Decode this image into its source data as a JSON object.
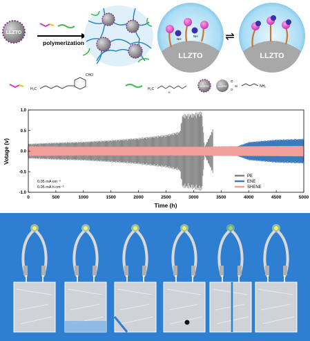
{
  "scheme": {
    "filler_label": "LLZTO",
    "arrow_label": "polymerization",
    "shell_label_left": "LLZTO",
    "shell_label_right": "LLZTO",
    "equilibrium_symbol": "⇌",
    "nh2_label": "NH",
    "nh2_sub": "2",
    "legend_monomer_substituent": "CHO",
    "legend_monomer_left": "H₂C",
    "legend_peg_left": "H₃C",
    "legend_peg_sub": "n",
    "legend_filler_label": "LLZTO",
    "legend_grafted_label": "LLZTO",
    "legend_silane_o": "O",
    "legend_silane_si": "Si",
    "legend_amine": "NH₂"
  },
  "chart_data": {
    "type": "line",
    "xlabel": "Time (h)",
    "ylabel": "Votage (v)",
    "xlim": [
      0,
      5000
    ],
    "ylim": [
      -1.0,
      1.0
    ],
    "xticks": [
      0,
      500,
      1000,
      1500,
      2000,
      2500,
      3000,
      3500,
      4000,
      4500,
      5000
    ],
    "yticks": [
      -1.0,
      -0.5,
      0.0,
      0.5,
      1.0
    ],
    "ytick_labels": [
      "-1.0",
      "-0.5",
      "0.0",
      "0.5",
      "1.0"
    ],
    "legend_position": "bottom-right",
    "annotations": [
      "0.05 mA cm⁻²",
      "0.05 mA h cm⁻²"
    ],
    "series": [
      {
        "name": "PE",
        "color": "#808080",
        "envelope_x": [
          0,
          500,
          1000,
          1500,
          2000,
          2500,
          2750,
          2800,
          3000,
          3150,
          3200,
          3350,
          3360
        ],
        "envelope_y": [
          0.18,
          0.21,
          0.23,
          0.27,
          0.32,
          0.4,
          0.48,
          0.9,
          0.92,
          0.98,
          0.1,
          0.55,
          0.05
        ]
      },
      {
        "name": "ENE",
        "color": "#3a7bbf",
        "envelope_x": [
          0,
          1000,
          2000,
          3000,
          3800,
          4000,
          4500,
          5000
        ],
        "envelope_y": [
          0.12,
          0.11,
          0.11,
          0.11,
          0.12,
          0.22,
          0.28,
          0.3
        ]
      },
      {
        "name": "SHENE",
        "color": "#f4a09a",
        "envelope_x": [
          0,
          1000,
          2000,
          3000,
          4000,
          5000
        ],
        "envelope_y": [
          0.12,
          0.11,
          0.11,
          0.11,
          0.12,
          0.13
        ]
      }
    ]
  },
  "photo": {
    "background_color": "#2e7fd1",
    "led_colors": [
      "#f3ee6e",
      "#f6f08a",
      "#f3ee70",
      "#f3ee70",
      "#9bd37a",
      "#f3ee70"
    ]
  }
}
